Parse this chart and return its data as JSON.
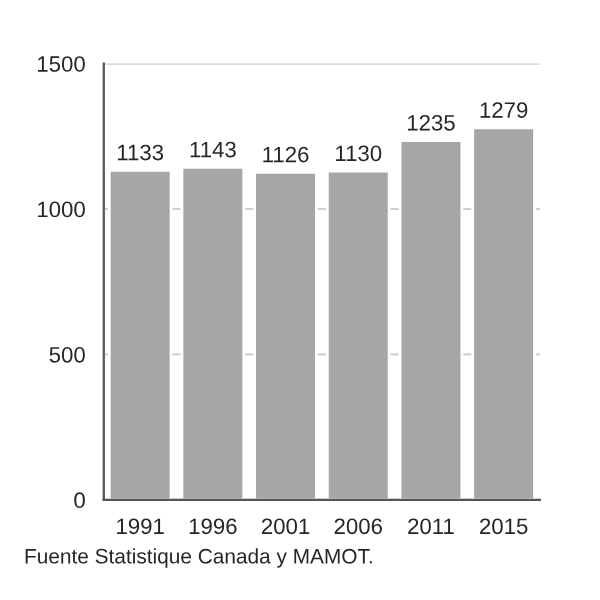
{
  "chart_data": {
    "type": "bar",
    "categories": [
      "1991",
      "1996",
      "2001",
      "2006",
      "2011",
      "2015"
    ],
    "values": [
      1133,
      1143,
      1126,
      1130,
      1235,
      1279
    ],
    "color": "#a6a6a6",
    "ylim": [
      0,
      1500
    ],
    "yticks": [
      0,
      500,
      1000,
      1500
    ],
    "grid": "y",
    "data_labels": true,
    "annotations": [
      "Fuente Statistique Canada y MAMOT."
    ]
  }
}
